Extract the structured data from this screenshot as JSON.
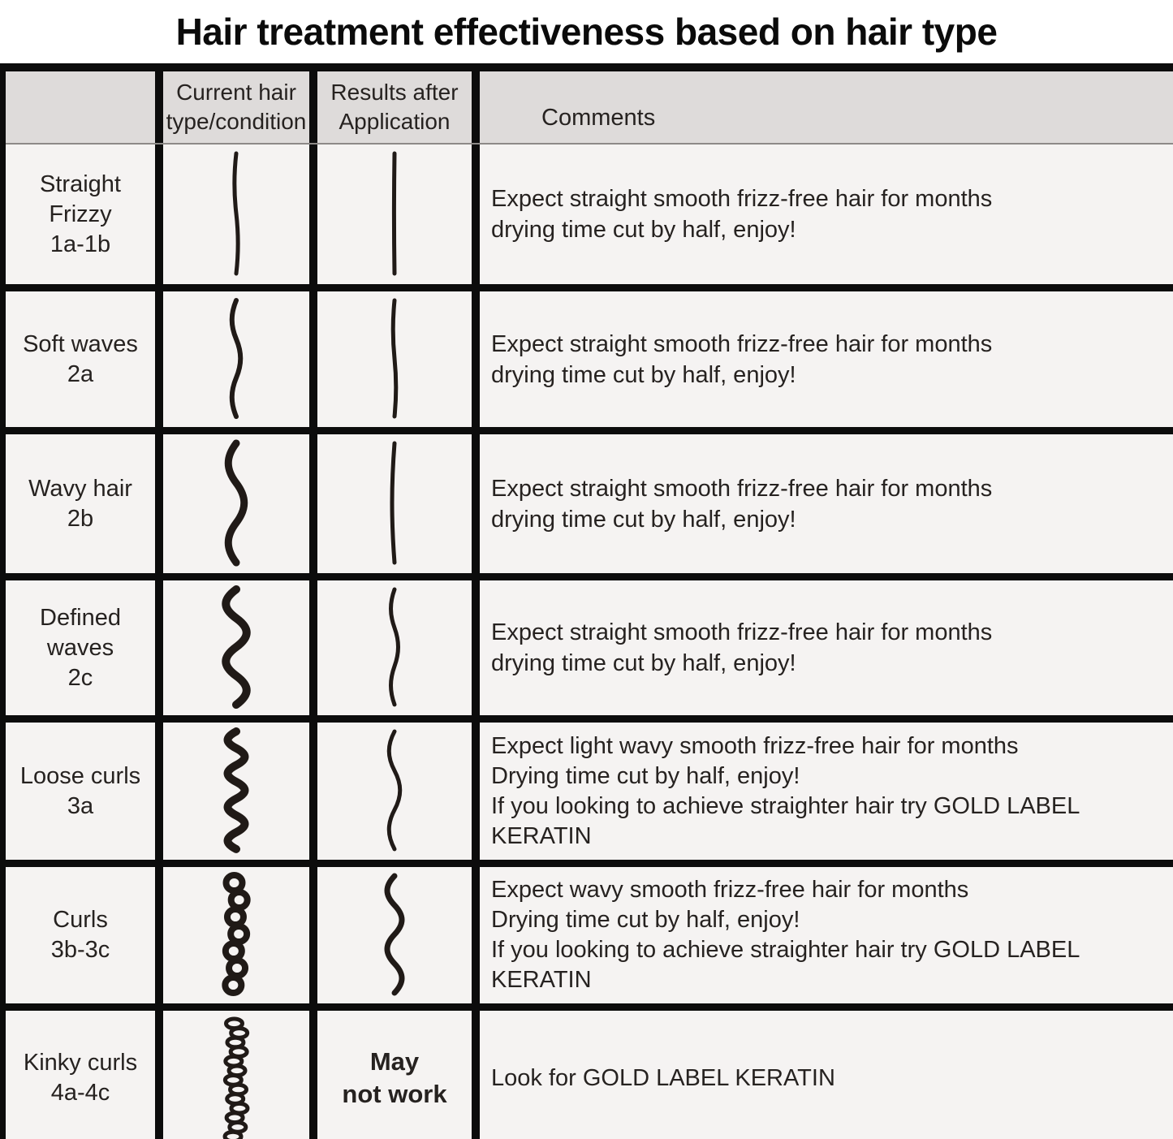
{
  "title": "Hair treatment effectiveness based on hair type",
  "colors": {
    "page_bg": "#ffffff",
    "cell_bg": "#f5f3f2",
    "header_bg": "#dedbda",
    "border": "#0c0c0c",
    "ink": "#201a17"
  },
  "header": {
    "col_label": "",
    "col_current_line1": "Current hair",
    "col_current_line2": "type/condition",
    "col_results_line1": "Results after",
    "col_results_line2": "Application",
    "col_comments": "Comments"
  },
  "rows": [
    {
      "label_lines": [
        "Straight",
        "Frizzy",
        "1a-1b"
      ],
      "current_drawing": "slight-frizz-line",
      "result_drawing": "straight-line",
      "result_text_lines": [],
      "comment_lines": [
        "Expect straight smooth frizz-free hair for months",
        "drying time cut by half, enjoy!"
      ]
    },
    {
      "label_lines": [
        "Soft waves",
        "2a"
      ],
      "current_drawing": "soft-wave",
      "result_drawing": "near-straight",
      "result_text_lines": [],
      "comment_lines": [
        "Expect straight smooth frizz-free hair for months",
        "drying time cut by half, enjoy!"
      ]
    },
    {
      "label_lines": [
        "Wavy hair",
        "2b"
      ],
      "current_drawing": "wave",
      "result_drawing": "bow-line",
      "result_text_lines": [],
      "comment_lines": [
        "Expect straight smooth frizz-free hair for months",
        "drying time cut by half, enjoy!"
      ]
    },
    {
      "label_lines": [
        "Defined",
        "waves",
        "2c"
      ],
      "current_drawing": "defined-wave",
      "result_drawing": "gentle-wave",
      "result_text_lines": [],
      "comment_lines": [
        "Expect straight smooth frizz-free hair for months",
        "drying time cut by half, enjoy!"
      ]
    },
    {
      "label_lines": [
        "Loose curls",
        "3a"
      ],
      "current_drawing": "tight-squiggle",
      "result_drawing": "light-wave",
      "result_text_lines": [],
      "comment_lines": [
        "Expect light wavy smooth frizz-free hair for months",
        "Drying time cut by half, enjoy!",
        "If you looking to achieve straighter hair try GOLD LABEL KERATIN"
      ]
    },
    {
      "label_lines": [
        "Curls",
        "3b-3c"
      ],
      "current_drawing": "loop-curls",
      "result_drawing": "medium-wave",
      "result_text_lines": [],
      "comment_lines": [
        "Expect wavy smooth frizz-free hair for months",
        "Drying time cut by half, enjoy!",
        "If you looking to achieve straighter hair try GOLD LABEL KERATIN"
      ]
    },
    {
      "label_lines": [
        "Kinky curls",
        "4a-4c"
      ],
      "current_drawing": "kinky-coil",
      "result_drawing": null,
      "result_text_lines": [
        "May",
        "not work"
      ],
      "comment_lines": [
        "Look for GOLD LABEL KERATIN"
      ]
    }
  ]
}
